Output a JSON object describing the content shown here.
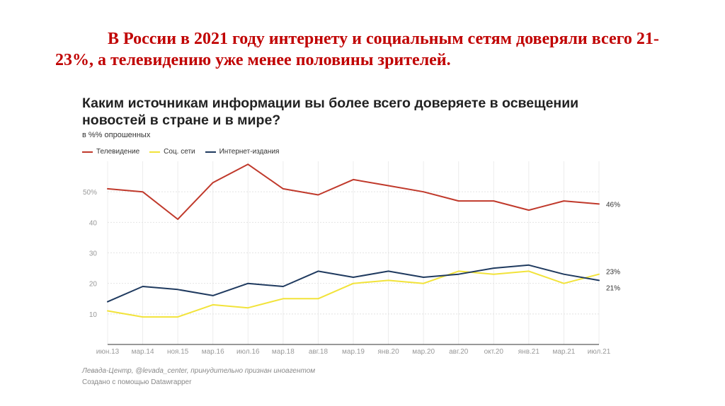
{
  "slide": {
    "headline": "В России в 2021 году интернету и социальным сетям доверяли всего 21-23%, а телевидению уже менее половины зрителей."
  },
  "chart_data": {
    "type": "line",
    "title": "Каким источникам информации вы более всего доверяете в освещении новостей в стране и в мире?",
    "subtitle": "в %% опрошенных",
    "xlabel": "",
    "ylabel": "",
    "x": [
      "июн.13",
      "мар.14",
      "ноя.15",
      "мар.16",
      "июл.16",
      "мар.18",
      "авг.18",
      "мар.19",
      "янв.20",
      "мар.20",
      "авг.20",
      "окт.20",
      "янв.21",
      "мар.21",
      "июл.21"
    ],
    "y_ticks": [
      {
        "value": 10,
        "label": "10"
      },
      {
        "value": 20,
        "label": "20"
      },
      {
        "value": 30,
        "label": "30"
      },
      {
        "value": 40,
        "label": "40"
      },
      {
        "value": 50,
        "label": "50%"
      }
    ],
    "ylim": [
      0,
      60
    ],
    "grid": true,
    "legend_position": "top-left",
    "series": [
      {
        "name": "Телевидение",
        "color": "#c0392b",
        "values": [
          51,
          50,
          41,
          53,
          59,
          51,
          49,
          54,
          52,
          50,
          47,
          47,
          44,
          47,
          46
        ],
        "end_label": "46%"
      },
      {
        "name": "Соц. сети",
        "color": "#f2e33a",
        "values": [
          11,
          9,
          9,
          13,
          12,
          15,
          15,
          20,
          21,
          20,
          24,
          23,
          24,
          20,
          23
        ],
        "end_label": "23%"
      },
      {
        "name": "Интернет-издания",
        "color": "#1f3a5f",
        "values": [
          14,
          19,
          18,
          16,
          20,
          19,
          24,
          22,
          24,
          22,
          23,
          25,
          26,
          23,
          21
        ],
        "end_label": "21%"
      }
    ],
    "source": "Левада-Центр, @levada_center, принудительно признан иноагентом",
    "credit": "Создано с помощью Datawrapper"
  }
}
